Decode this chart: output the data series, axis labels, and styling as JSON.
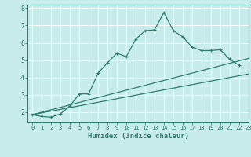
{
  "title": "",
  "xlabel": "Humidex (Indice chaleur)",
  "ylabel": "",
  "bg_color": "#c8ecec",
  "line_color": "#2e7d6e",
  "grid_color": "#ffffff",
  "xlim": [
    -0.5,
    23
  ],
  "ylim": [
    1.4,
    8.2
  ],
  "yticks": [
    2,
    3,
    4,
    5,
    6,
    7,
    8
  ],
  "xticks": [
    0,
    1,
    2,
    3,
    4,
    5,
    6,
    7,
    8,
    9,
    10,
    11,
    12,
    13,
    14,
    15,
    16,
    17,
    18,
    19,
    20,
    21,
    22,
    23
  ],
  "series1_x": [
    0,
    1,
    2,
    3,
    4,
    5,
    6,
    7,
    8,
    9,
    10,
    11,
    12,
    13,
    14,
    15,
    16,
    17,
    18,
    19,
    20,
    21,
    22
  ],
  "series1_y": [
    1.85,
    1.75,
    1.7,
    1.9,
    2.35,
    3.05,
    3.05,
    4.25,
    4.85,
    5.4,
    5.2,
    6.2,
    6.7,
    6.75,
    7.75,
    6.7,
    6.35,
    5.75,
    5.55,
    5.55,
    5.6,
    5.05,
    4.7
  ],
  "series2_x": [
    0,
    23
  ],
  "series2_y": [
    1.85,
    4.2
  ],
  "series3_x": [
    0,
    23
  ],
  "series3_y": [
    1.85,
    5.1
  ],
  "font_family": "monospace"
}
